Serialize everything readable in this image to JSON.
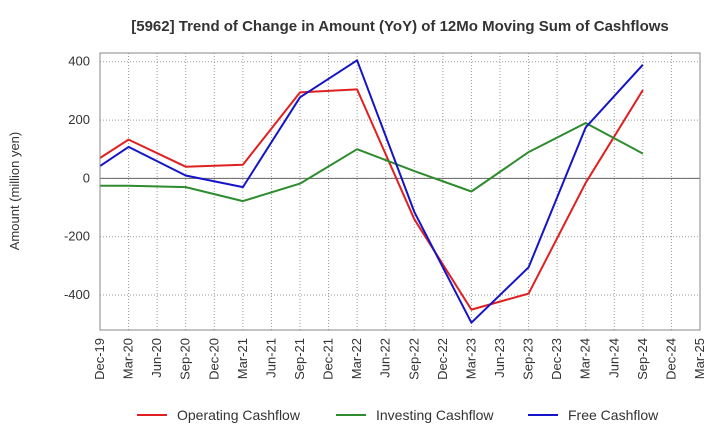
{
  "chart_data": {
    "type": "line",
    "title": "[5962]  Trend of Change in Amount (YoY) of 12Mo Moving Sum of Cashflows",
    "xlabel": "",
    "ylabel": "Amount (million yen)",
    "categories": [
      "Dec-19",
      "Mar-20",
      "Jun-20",
      "Sep-20",
      "Dec-20",
      "Mar-21",
      "Jun-21",
      "Sep-21",
      "Dec-21",
      "Mar-22",
      "Jun-22",
      "Sep-22",
      "Dec-22",
      "Mar-23",
      "Jun-23",
      "Sep-23",
      "Dec-23",
      "Mar-24",
      "Jun-24",
      "Sep-24",
      "Dec-24",
      "Mar-25"
    ],
    "ylim": [
      -520,
      430
    ],
    "yticks": [
      400,
      200,
      0,
      -200,
      -400
    ],
    "ytick_labels": [
      "400",
      "200",
      "0",
      "-200",
      "-400"
    ],
    "grid": true,
    "legend_position": "bottom",
    "series": [
      {
        "name": "Operating Cashflow",
        "color": "#e02020",
        "values": [
          70,
          133,
          null,
          40,
          null,
          47,
          null,
          295,
          null,
          305,
          null,
          -140,
          null,
          -450,
          null,
          -395,
          null,
          -15,
          null,
          303,
          null,
          null
        ]
      },
      {
        "name": "Investing Cashflow",
        "color": "#2e8b2e",
        "values": [
          -25,
          -25,
          null,
          -30,
          null,
          -78,
          null,
          -18,
          null,
          100,
          null,
          25,
          null,
          -45,
          null,
          90,
          null,
          190,
          null,
          85,
          null,
          null
        ]
      },
      {
        "name": "Free Cashflow",
        "color": "#1414c8",
        "values": [
          42,
          108,
          null,
          10,
          null,
          -30,
          null,
          278,
          null,
          405,
          null,
          -115,
          null,
          -495,
          null,
          -305,
          null,
          175,
          null,
          390,
          null,
          null
        ]
      }
    ]
  }
}
